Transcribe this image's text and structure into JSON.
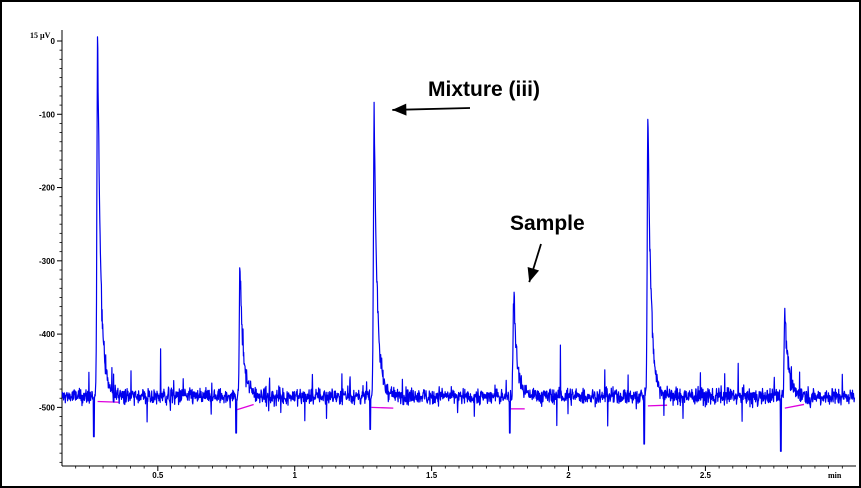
{
  "chart_data": {
    "type": "line",
    "title": "",
    "xlabel": "",
    "ylabel": "",
    "x_unit_label": "min",
    "y_unit_label": "15 µV",
    "xlim": [
      0.15,
      3.05
    ],
    "ylim": [
      -580,
      15
    ],
    "x_ticks": [
      0.5,
      1,
      1.5,
      2,
      2.5
    ],
    "x_tick_labels": [
      "0.5",
      "1",
      "1.5",
      "2",
      "2.5"
    ],
    "y_ticks": [
      0,
      -100,
      -200,
      -300,
      -400,
      -500
    ],
    "y_tick_labels": [
      "0",
      "-100",
      "-200",
      "-300",
      "-400",
      "-500"
    ],
    "baseline": -485,
    "grid": false,
    "line_color": "#0000ee",
    "integration_color": "#dd00dd",
    "peaks": [
      {
        "t": 0.28,
        "height": 10,
        "dip": -540
      },
      {
        "t": 0.8,
        "height": -310,
        "dip": -535
      },
      {
        "t": 1.29,
        "height": -100,
        "dip": -530
      },
      {
        "t": 1.8,
        "height": -345,
        "dip": -535
      },
      {
        "t": 2.29,
        "height": -97,
        "dip": -550
      },
      {
        "t": 2.79,
        "height": -365,
        "dip": -560
      }
    ],
    "integration_baselines": [
      [
        [
          0.28,
          -492
        ],
        [
          0.36,
          -493
        ]
      ],
      [
        [
          0.79,
          -503
        ],
        [
          0.85,
          -496
        ]
      ],
      [
        [
          1.28,
          -500
        ],
        [
          1.36,
          -501
        ]
      ],
      [
        [
          1.79,
          -502
        ],
        [
          1.84,
          -502
        ]
      ],
      [
        [
          2.29,
          -498
        ],
        [
          2.36,
          -497
        ]
      ],
      [
        [
          2.79,
          -501
        ],
        [
          2.86,
          -496
        ]
      ]
    ],
    "annotations": [
      {
        "text": "Mixture (iii)",
        "arrow_to": [
          1.32,
          -105
        ]
      },
      {
        "text": "Sample",
        "arrow_to": [
          1.82,
          -340
        ]
      }
    ]
  }
}
